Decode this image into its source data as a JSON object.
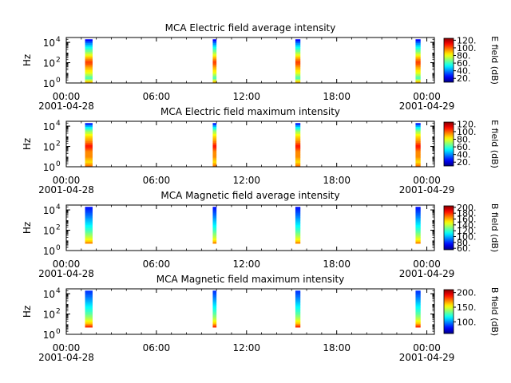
{
  "panels": [
    {
      "title": "MCA  Electric field average intensity",
      "ylabel": "Hz",
      "ytick_labels": [
        "10",
        "10",
        "10"
      ],
      "ytick_exponents": [
        "0",
        "2",
        "4"
      ],
      "colorbar_label": "E field (dB)",
      "colorbar_ticks": [
        "20.",
        "40.",
        "60.",
        "80.",
        "100.",
        "120."
      ],
      "colorbar_range": [
        10,
        125
      ]
    },
    {
      "title": "MCA  Electric field maximum intensity",
      "ylabel": "Hz",
      "ytick_labels": [
        "10",
        "10",
        "10"
      ],
      "ytick_exponents": [
        "0",
        "2",
        "4"
      ],
      "colorbar_label": "E field (dB)",
      "colorbar_ticks": [
        "20.",
        "40.",
        "60.",
        "80.",
        "100.",
        "120."
      ],
      "colorbar_range": [
        10,
        125
      ]
    },
    {
      "title": "MCA  Magnetic field average intensity",
      "ylabel": "Hz",
      "ytick_labels": [
        "10",
        "10",
        "10"
      ],
      "ytick_exponents": [
        "0",
        "2",
        "4"
      ],
      "colorbar_label": "B field (dB)",
      "colorbar_ticks": [
        "60.",
        "80.",
        "100.",
        "120.",
        "140.",
        "160.",
        "180.",
        "200."
      ],
      "colorbar_range": [
        55,
        205
      ]
    },
    {
      "title": "MCA  Magnetic field maximum intensity",
      "ylabel": "Hz",
      "ytick_labels": [
        "10",
        "10",
        "10"
      ],
      "ytick_exponents": [
        "0",
        "2",
        "4"
      ],
      "colorbar_label": "B field (dB)",
      "colorbar_ticks": [
        "100.",
        "150.",
        "200."
      ],
      "colorbar_range": [
        60,
        210
      ]
    }
  ],
  "xaxis": {
    "tick_labels": [
      "00:00",
      "06:00",
      "12:00",
      "18:00",
      "00:00"
    ],
    "date_labels": [
      "2001-04-28",
      "2001-04-29"
    ]
  },
  "chart_data": [
    {
      "type": "heatmap",
      "title": "MCA  Electric field average intensity",
      "ylabel": "Hz",
      "yscale": "log",
      "ylim": [
        1,
        30000
      ],
      "xlim": [
        "2001-04-28 00:00",
        "2001-04-29 00:30"
      ],
      "color_label": "E field (dB)",
      "color_range": [
        10,
        125
      ],
      "data_intervals": [
        {
          "start": "2001-04-28 01:15",
          "end": "2001-04-28 01:45"
        },
        {
          "start": "2001-04-28 09:45",
          "end": "2001-04-28 10:00"
        },
        {
          "start": "2001-04-28 15:15",
          "end": "2001-04-28 15:35"
        },
        {
          "start": "2001-04-28 23:15",
          "end": "2001-04-28 23:35"
        }
      ],
      "profile": {
        "freq_hz": [
          1,
          3,
          10,
          30,
          100,
          300,
          1000,
          3000,
          10000,
          20000
        ],
        "db": [
          95,
          60,
          80,
          90,
          105,
          90,
          70,
          55,
          35,
          20
        ]
      }
    },
    {
      "type": "heatmap",
      "title": "MCA  Electric field maximum intensity",
      "ylabel": "Hz",
      "yscale": "log",
      "ylim": [
        1,
        30000
      ],
      "xlim": [
        "2001-04-28 00:00",
        "2001-04-29 00:30"
      ],
      "color_label": "E field (dB)",
      "color_range": [
        10,
        125
      ],
      "data_intervals": [
        {
          "start": "2001-04-28 01:15",
          "end": "2001-04-28 01:45"
        },
        {
          "start": "2001-04-28 09:45",
          "end": "2001-04-28 10:00"
        },
        {
          "start": "2001-04-28 15:15",
          "end": "2001-04-28 15:35"
        },
        {
          "start": "2001-04-28 23:15",
          "end": "2001-04-28 23:35"
        }
      ],
      "profile": {
        "freq_hz": [
          1,
          3,
          10,
          30,
          100,
          300,
          1000,
          3000,
          10000,
          20000
        ],
        "db": [
          100,
          85,
          95,
          95,
          110,
          95,
          85,
          70,
          45,
          20
        ]
      }
    },
    {
      "type": "heatmap",
      "title": "MCA  Magnetic field average intensity",
      "ylabel": "Hz",
      "yscale": "log",
      "ylim": [
        1,
        30000
      ],
      "xlim": [
        "2001-04-28 00:00",
        "2001-04-29 00:30"
      ],
      "color_label": "B field (dB)",
      "color_range": [
        55,
        205
      ],
      "data_intervals": [
        {
          "start": "2001-04-28 01:15",
          "end": "2001-04-28 01:45"
        },
        {
          "start": "2001-04-28 09:45",
          "end": "2001-04-28 10:00"
        },
        {
          "start": "2001-04-28 15:15",
          "end": "2001-04-28 15:35"
        },
        {
          "start": "2001-04-28 23:15",
          "end": "2001-04-28 23:35"
        }
      ],
      "profile": {
        "freq_hz": [
          5,
          10,
          30,
          100,
          300,
          1000,
          3000,
          10000,
          20000
        ],
        "db": [
          170,
          150,
          135,
          120,
          110,
          100,
          90,
          80,
          75
        ]
      }
    },
    {
      "type": "heatmap",
      "title": "MCA  Magnetic field maximum intensity",
      "ylabel": "Hz",
      "yscale": "log",
      "ylim": [
        1,
        30000
      ],
      "xlim": [
        "2001-04-28 00:00",
        "2001-04-29 00:30"
      ],
      "color_label": "B field (dB)",
      "color_range": [
        60,
        210
      ],
      "data_intervals": [
        {
          "start": "2001-04-28 01:15",
          "end": "2001-04-28 01:45"
        },
        {
          "start": "2001-04-28 09:45",
          "end": "2001-04-28 10:00"
        },
        {
          "start": "2001-04-28 15:15",
          "end": "2001-04-28 15:35"
        },
        {
          "start": "2001-04-28 23:15",
          "end": "2001-04-28 23:35"
        }
      ],
      "profile": {
        "freq_hz": [
          5,
          10,
          30,
          100,
          300,
          1000,
          3000,
          10000,
          20000
        ],
        "db": [
          190,
          165,
          145,
          130,
          120,
          110,
          100,
          90,
          85
        ]
      }
    }
  ]
}
